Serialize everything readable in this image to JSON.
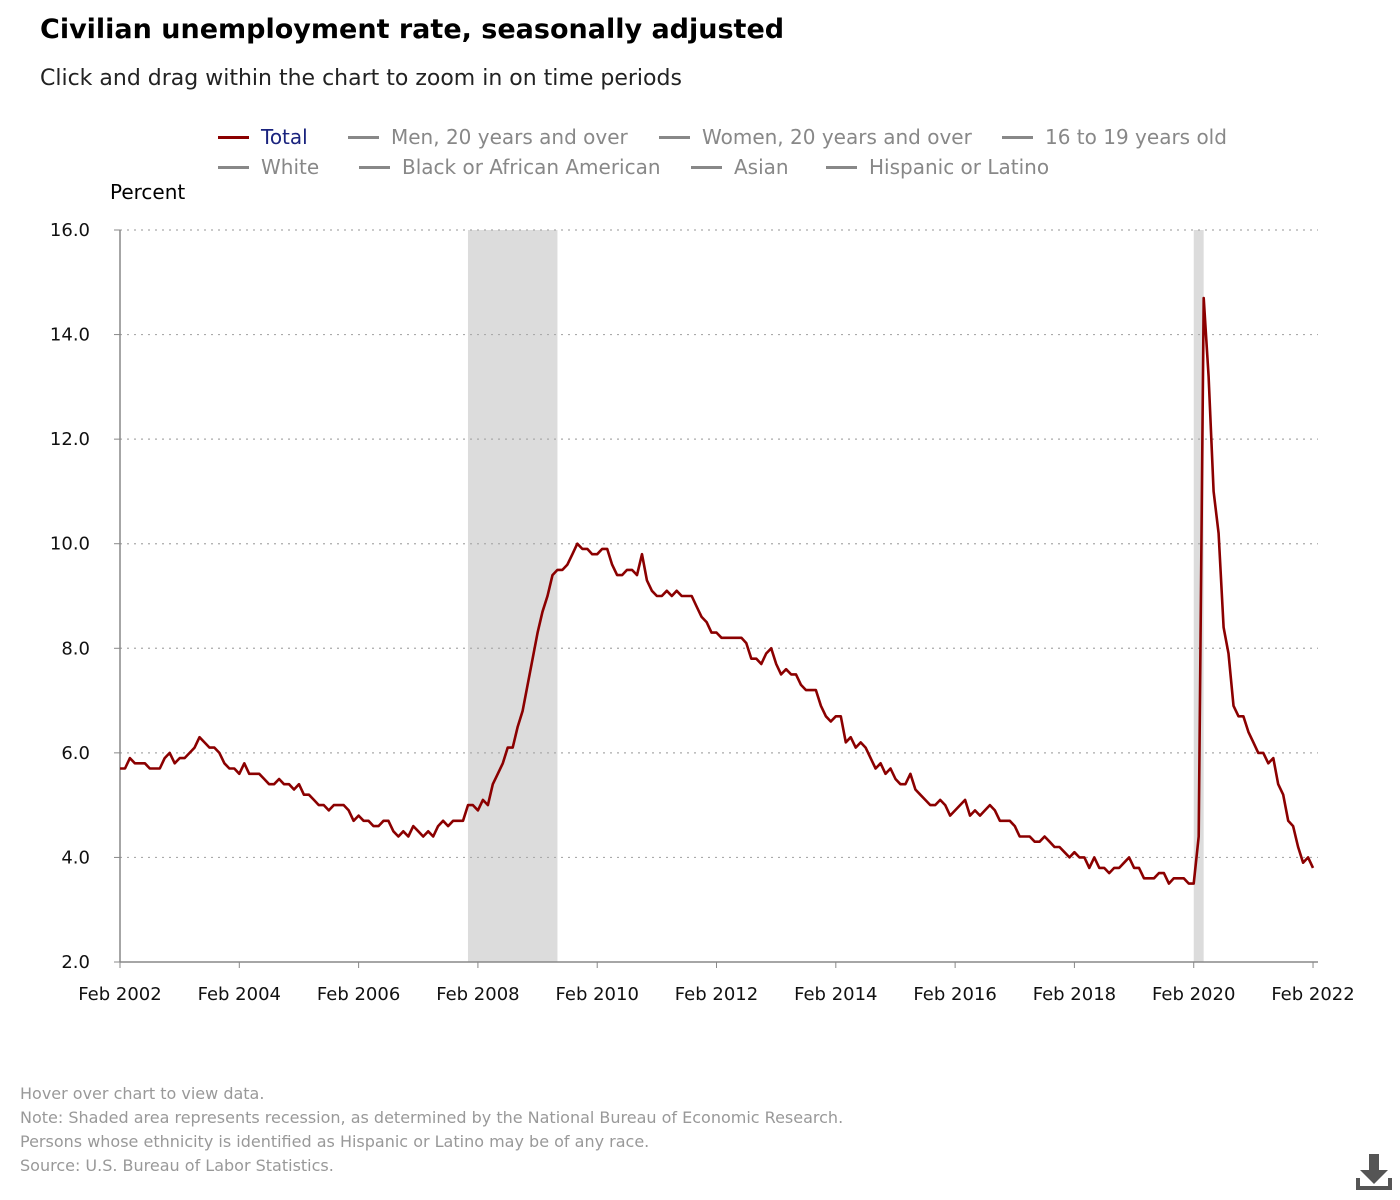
{
  "title": "Civilian unemployment rate, seasonally adjusted",
  "subtitle": "Click and drag within the chart to zoom in on time periods",
  "legend": [
    {
      "label": "Total",
      "active": true
    },
    {
      "label": "Men, 20 years and over",
      "active": false
    },
    {
      "label": "Women, 20 years and over",
      "active": false
    },
    {
      "label": "16 to 19 years old",
      "active": false
    },
    {
      "label": "White",
      "active": false
    },
    {
      "label": "Black or African American",
      "active": false
    },
    {
      "label": "Asian",
      "active": false
    },
    {
      "label": "Hispanic or Latino",
      "active": false
    }
  ],
  "notes": [
    "Hover over chart to view data.",
    "Note: Shaded area represents recession, as determined by the National Bureau of Economic Research.",
    "Persons whose ethnicity is identified as Hispanic or Latino may be of any race.",
    "Source: U.S. Bureau of Labor Statistics."
  ],
  "icons": {
    "download": "download-icon"
  },
  "colors": {
    "series": "#8b0000",
    "recession": "#dcdcdc",
    "legend_active": "#1a237e",
    "legend_inactive": "#888888"
  },
  "chart_data": {
    "type": "line",
    "ylabel": "Percent",
    "ylim": [
      2.0,
      16.0
    ],
    "yticks": [
      "2.0",
      "4.0",
      "6.0",
      "8.0",
      "10.0",
      "12.0",
      "14.0",
      "16.0"
    ],
    "xticks": [
      "Feb 2002",
      "Feb 2004",
      "Feb 2006",
      "Feb 2008",
      "Feb 2010",
      "Feb 2012",
      "Feb 2014",
      "Feb 2016",
      "Feb 2018",
      "Feb 2020",
      "Feb 2022"
    ],
    "x_range": [
      "2002-02",
      "2022-03"
    ],
    "grid": "horizontal dotted",
    "legend_position": "top",
    "recessions": [
      {
        "start": "2007-12",
        "end": "2009-06"
      },
      {
        "start": "2020-02",
        "end": "2020-04"
      }
    ],
    "series": [
      {
        "name": "Total",
        "start": "2002-02",
        "frequency": "monthly",
        "values": [
          5.7,
          5.7,
          5.9,
          5.8,
          5.8,
          5.8,
          5.7,
          5.7,
          5.7,
          5.9,
          6.0,
          5.8,
          5.9,
          5.9,
          6.0,
          6.1,
          6.3,
          6.2,
          6.1,
          6.1,
          6.0,
          5.8,
          5.7,
          5.7,
          5.6,
          5.8,
          5.6,
          5.6,
          5.6,
          5.5,
          5.4,
          5.4,
          5.5,
          5.4,
          5.4,
          5.3,
          5.4,
          5.2,
          5.2,
          5.1,
          5.0,
          5.0,
          4.9,
          5.0,
          5.0,
          5.0,
          4.9,
          4.7,
          4.8,
          4.7,
          4.7,
          4.6,
          4.6,
          4.7,
          4.7,
          4.5,
          4.4,
          4.5,
          4.4,
          4.6,
          4.5,
          4.4,
          4.5,
          4.4,
          4.6,
          4.7,
          4.6,
          4.7,
          4.7,
          4.7,
          5.0,
          5.0,
          4.9,
          5.1,
          5.0,
          5.4,
          5.6,
          5.8,
          6.1,
          6.1,
          6.5,
          6.8,
          7.3,
          7.8,
          8.3,
          8.7,
          9.0,
          9.4,
          9.5,
          9.5,
          9.6,
          9.8,
          10.0,
          9.9,
          9.9,
          9.8,
          9.8,
          9.9,
          9.9,
          9.6,
          9.4,
          9.4,
          9.5,
          9.5,
          9.4,
          9.8,
          9.3,
          9.1,
          9.0,
          9.0,
          9.1,
          9.0,
          9.1,
          9.0,
          9.0,
          9.0,
          8.8,
          8.6,
          8.5,
          8.3,
          8.3,
          8.2,
          8.2,
          8.2,
          8.2,
          8.2,
          8.1,
          7.8,
          7.8,
          7.7,
          7.9,
          8.0,
          7.7,
          7.5,
          7.6,
          7.5,
          7.5,
          7.3,
          7.2,
          7.2,
          7.2,
          6.9,
          6.7,
          6.6,
          6.7,
          6.7,
          6.2,
          6.3,
          6.1,
          6.2,
          6.1,
          5.9,
          5.7,
          5.8,
          5.6,
          5.7,
          5.5,
          5.4,
          5.4,
          5.6,
          5.3,
          5.2,
          5.1,
          5.0,
          5.0,
          5.1,
          5.0,
          4.8,
          4.9,
          5.0,
          5.1,
          4.8,
          4.9,
          4.8,
          4.9,
          5.0,
          4.9,
          4.7,
          4.7,
          4.7,
          4.6,
          4.4,
          4.4,
          4.4,
          4.3,
          4.3,
          4.4,
          4.3,
          4.2,
          4.2,
          4.1,
          4.0,
          4.1,
          4.0,
          4.0,
          3.8,
          4.0,
          3.8,
          3.8,
          3.7,
          3.8,
          3.8,
          3.9,
          4.0,
          3.8,
          3.8,
          3.6,
          3.6,
          3.6,
          3.7,
          3.7,
          3.5,
          3.6,
          3.6,
          3.6,
          3.5,
          3.5,
          4.4,
          14.7,
          13.2,
          11.0,
          10.2,
          8.4,
          7.9,
          6.9,
          6.7,
          6.7,
          6.4,
          6.2,
          6.0,
          6.0,
          5.8,
          5.9,
          5.4,
          5.2,
          4.7,
          4.6,
          4.2,
          3.9,
          4.0,
          3.8
        ]
      }
    ]
  }
}
